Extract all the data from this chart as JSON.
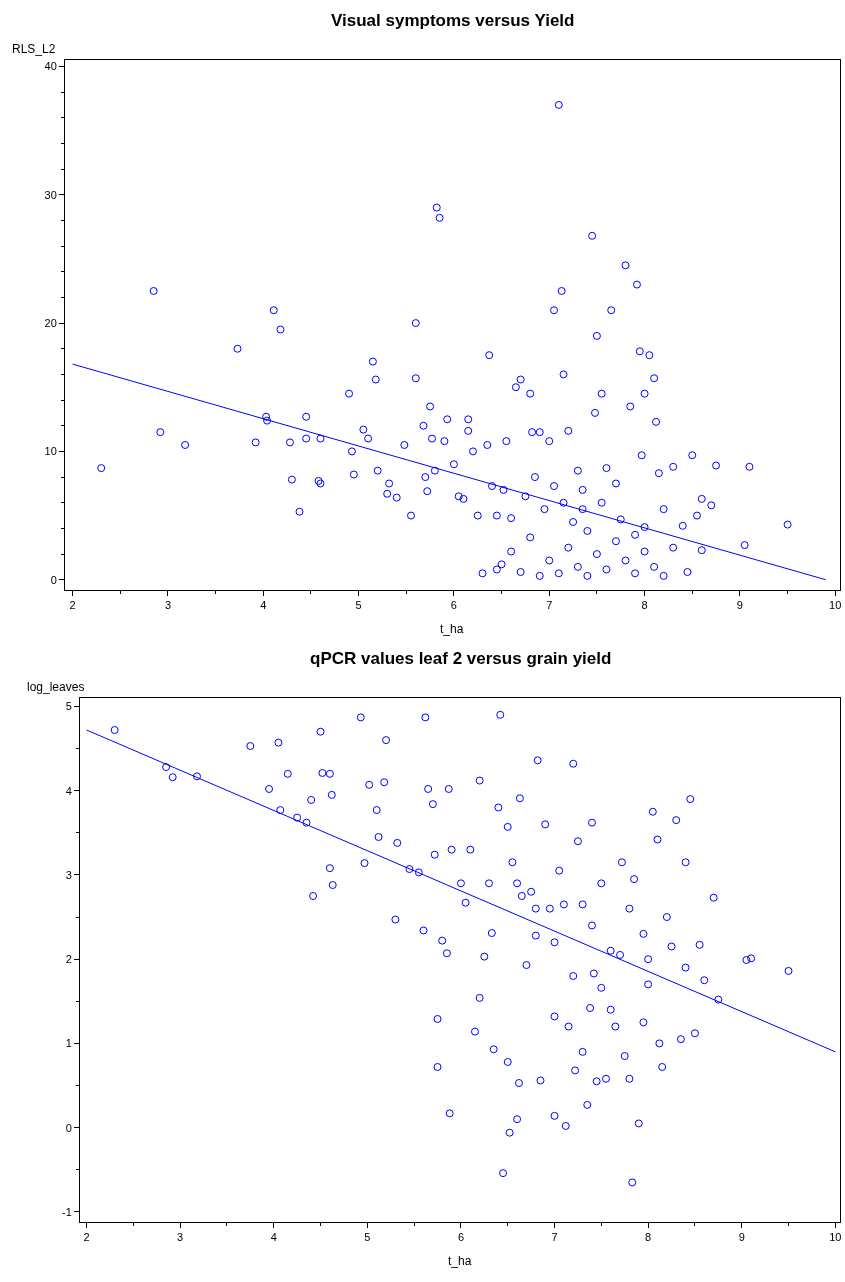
{
  "chart_data": [
    {
      "type": "scatter",
      "title": "Visual symptoms versus Yield",
      "xlabel": "t_ha",
      "ylabel": "RLS_L2",
      "xlim": [
        1.92,
        10.05
      ],
      "ylim": [
        -0.8,
        40.5
      ],
      "xticks": [
        2,
        3,
        4,
        5,
        6,
        7,
        8,
        9,
        10
      ],
      "yticks": [
        0,
        10,
        20,
        30,
        40
      ],
      "series": [
        {
          "marker": "circle",
          "color": "#0000ff",
          "x": [
            2.3,
            2.85,
            2.92,
            3.18,
            3.73,
            3.92,
            4.03,
            4.04,
            4.11,
            4.18,
            4.28,
            4.3,
            4.38,
            4.45,
            4.45,
            4.58,
            4.6,
            4.6,
            4.9,
            4.93,
            4.95,
            5.05,
            5.1,
            5.15,
            5.18,
            5.2,
            5.3,
            5.32,
            5.4,
            5.48,
            5.55,
            5.6,
            5.6,
            5.68,
            5.7,
            5.72,
            5.75,
            5.77,
            5.8,
            5.82,
            5.85,
            5.9,
            5.93,
            6.0,
            6.05,
            6.1,
            6.15,
            6.15,
            6.2,
            6.25,
            6.3,
            6.35,
            6.37,
            6.4,
            6.45,
            6.5,
            6.52,
            6.55,
            6.6,
            6.65,
            6.7,
            6.75,
            6.8,
            6.82,
            6.85,
            6.9,
            6.95,
            7.0,
            7.05,
            7.1,
            7.13,
            7.15,
            7.2,
            7.25,
            7.3,
            7.35,
            7.45,
            7.48,
            7.5,
            7.55,
            7.65,
            7.7,
            7.8,
            7.85,
            7.92,
            7.95,
            7.97,
            8.0,
            8.05,
            8.1,
            8.12,
            8.15,
            8.3,
            8.5,
            8.55,
            8.6,
            8.7,
            8.75,
            9.05,
            9.1,
            9.5,
            6.9,
            7.0,
            7.1,
            7.2,
            7.3,
            7.4,
            7.5,
            7.6,
            7.7,
            7.8,
            7.9,
            8.0,
            8.1,
            8.2,
            8.3,
            8.4,
            8.45,
            8.6,
            7.35,
            7.55,
            7.75,
            7.9,
            6.6,
            6.8,
            7.05,
            7.4,
            8.0,
            8.2,
            6.45,
            6.7,
            7.15,
            7.6
          ],
          "values": [
            8.7,
            22.5,
            11.5,
            10.5,
            18,
            10.7,
            12.7,
            12.4,
            21,
            19.5,
            10.7,
            7.8,
            5.3,
            12.7,
            11,
            7.7,
            7.5,
            11,
            14.5,
            10,
            8.2,
            11.7,
            11,
            17,
            15.6,
            8.5,
            6.7,
            7.5,
            6.4,
            10.5,
            5,
            20,
            15.7,
            12,
            8,
            6.9,
            13.5,
            11,
            8.5,
            29,
            28.2,
            10.8,
            12.5,
            9,
            6.5,
            6.3,
            11.6,
            12.5,
            10,
            5,
            0.5,
            10.5,
            17.5,
            7.3,
            5,
            1.2,
            7,
            10.8,
            2.2,
            15,
            15.6,
            6.5,
            14.5,
            11.5,
            8,
            11.5,
            5.5,
            10.8,
            21,
            37,
            22.5,
            16,
            11.6,
            4.5,
            8.5,
            7,
            26.8,
            13,
            19,
            14.5,
            21,
            7.5,
            24.5,
            13.5,
            23,
            17.8,
            9.7,
            14.5,
            17.5,
            15.7,
            12.3,
            8.3,
            8.8,
            9.7,
            5,
            6.3,
            5.8,
            8.9,
            2.7,
            8.8,
            4.3,
            0.3,
            1.5,
            0.5,
            2.5,
            1,
            0.3,
            2,
            0.8,
            3,
            1.5,
            0.5,
            2.2,
            1,
            0.3,
            2.5,
            4.2,
            0.6,
            2.3,
            5.5,
            6,
            4.7,
            3.5,
            4.8,
            3.3,
            7.3,
            3.8,
            4.1,
            5.5,
            0.8,
            0.6,
            6,
            8.7
          ]
        },
        {
          "type": "line",
          "marker": "none",
          "color": "#0000ff",
          "x": [
            2,
            9.9
          ],
          "values": [
            16.8,
            0
          ]
        }
      ]
    },
    {
      "type": "scatter",
      "title": "qPCR values leaf 2 versus grain yield",
      "xlabel": "t_ha",
      "ylabel": "log_leaves",
      "xlim": [
        1.93,
        10.05
      ],
      "ylim": [
        -1.12,
        5.1
      ],
      "xticks": [
        2,
        3,
        4,
        5,
        6,
        7,
        8,
        9,
        10
      ],
      "yticks": [
        -1,
        0,
        1,
        2,
        3,
        4,
        5
      ],
      "series": [
        {
          "marker": "circle",
          "color": "#0000ff",
          "x": [
            2.3,
            2.85,
            2.92,
            3.18,
            3.75,
            3.95,
            4.05,
            4.07,
            4.15,
            4.25,
            4.35,
            4.4,
            4.42,
            4.5,
            4.52,
            4.6,
            4.6,
            4.63,
            4.62,
            4.93,
            4.97,
            5.02,
            5.1,
            5.12,
            5.18,
            5.2,
            5.3,
            5.32,
            5.45,
            5.55,
            5.6,
            5.62,
            5.65,
            5.7,
            5.72,
            5.75,
            5.75,
            5.8,
            5.85,
            5.87,
            5.9,
            5.88,
            6.0,
            6.05,
            6.1,
            6.15,
            6.2,
            6.2,
            6.25,
            6.3,
            6.33,
            6.35,
            6.4,
            6.42,
            6.45,
            6.5,
            6.5,
            6.52,
            6.55,
            6.6,
            6.62,
            6.63,
            6.65,
            6.7,
            6.75,
            6.8,
            6.82,
            6.85,
            6.9,
            6.95,
            7.0,
            7.0,
            7.05,
            7.1,
            7.12,
            7.15,
            7.2,
            7.22,
            7.25,
            7.3,
            7.3,
            7.35,
            7.38,
            7.4,
            7.42,
            7.45,
            7.5,
            7.5,
            7.55,
            7.6,
            7.65,
            7.7,
            7.72,
            7.75,
            7.8,
            7.83,
            7.85,
            7.9,
            7.95,
            7.95,
            8.0,
            8.05,
            8.1,
            8.12,
            8.15,
            8.2,
            8.25,
            8.3,
            8.35,
            8.4,
            8.45,
            8.5,
            8.55,
            8.6,
            8.7,
            8.75,
            9.05,
            9.1,
            9.5,
            7.0,
            7.2,
            7.6,
            8.0,
            6.8,
            7.4,
            7.8,
            8.4,
            6.6
          ],
          "values": [
            4.72,
            4.28,
            4.16,
            4.17,
            4.53,
            4.02,
            4.57,
            3.77,
            4.2,
            3.68,
            3.62,
            3.89,
            2.75,
            4.7,
            4.21,
            4.2,
            3.08,
            2.88,
            3.95,
            4.87,
            3.14,
            4.07,
            3.77,
            3.45,
            4.1,
            4.6,
            2.47,
            3.38,
            3.07,
            3.03,
            2.34,
            4.87,
            4.02,
            3.84,
            3.24,
            1.29,
            0.72,
            2.22,
            2.07,
            4.02,
            3.3,
            0.17,
            2.9,
            2.67,
            3.3,
            1.14,
            4.12,
            1.54,
            2.03,
            2.9,
            2.31,
            0.93,
            3.8,
            4.9,
            -0.54,
            3.57,
            0.78,
            -0.06,
            3.15,
            0.1,
            0.53,
            3.91,
            2.75,
            1.93,
            2.8,
            2.28,
            4.36,
            0.56,
            3.6,
            2.6,
            1.32,
            0.14,
            3.05,
            2.65,
            0.02,
            1.2,
            4.32,
            0.68,
            3.4,
            0.9,
            2.65,
            0.27,
            1.42,
            3.62,
            1.83,
            0.55,
            2.9,
            1.66,
            0.58,
            2.1,
            1.2,
            2.05,
            3.15,
            0.85,
            0.58,
            -0.65,
            2.95,
            0.05,
            1.25,
            2.3,
            1.7,
            3.75,
            3.42,
            1.0,
            0.72,
            2.5,
            2.15,
            3.65,
            1.05,
            3.15,
            3.9,
            1.12,
            2.17,
            1.75,
            2.73,
            1.52,
            1.99,
            2.01,
            1.86,
            2.2,
            1.8,
            1.4,
            2.0,
            2.6,
            2.4,
            2.6,
            1.9,
            2.9
          ]
        },
        {
          "type": "line",
          "marker": "none",
          "color": "#0000ff",
          "x": [
            2,
            10
          ],
          "values": [
            4.72,
            0.9
          ]
        }
      ]
    }
  ]
}
